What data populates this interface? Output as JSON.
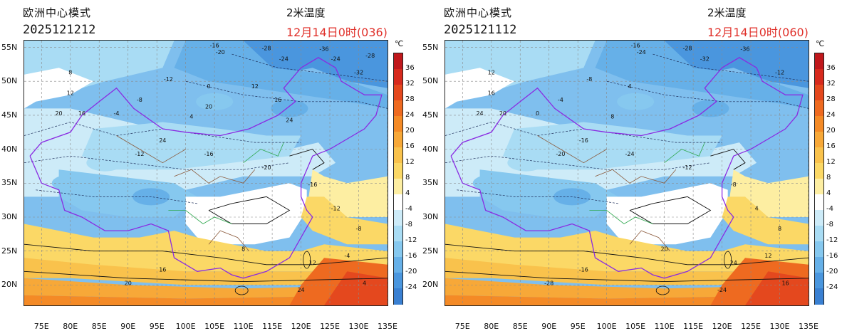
{
  "left_panel": {
    "model": "欧洲中心模式",
    "run_time": "2025121212",
    "variable": "2米温度",
    "valid_time": "12月14日0时(036)"
  },
  "right_panel": {
    "model": "欧洲中心模式",
    "run_time": "2025121112",
    "variable": "2米温度",
    "valid_time": "12月14日0时(060)"
  },
  "axes": {
    "lon_labels": [
      "75E",
      "80E",
      "85E",
      "90E",
      "95E",
      "100E",
      "105E",
      "110E",
      "115E",
      "120E",
      "125E",
      "130E",
      "135E"
    ],
    "lat_labels": [
      "55N",
      "50N",
      "45N",
      "40N",
      "35N",
      "30N",
      "25N",
      "20N"
    ]
  },
  "colorbar": {
    "unit": "℃",
    "labels": [
      "36",
      "32",
      "28",
      "24",
      "20",
      "16",
      "12",
      "8",
      "4",
      "-4",
      "-8",
      "-12",
      "-16",
      "-20",
      "-24"
    ],
    "colors": [
      "#c0181c",
      "#d72a1e",
      "#e4481e",
      "#ee6a20",
      "#f48a26",
      "#f7a838",
      "#f9c24c",
      "#fbd866",
      "#fdeea2",
      "#ffffff",
      "#cdebf8",
      "#a9dcf4",
      "#86c8ef",
      "#66b0e8",
      "#4a96de",
      "#3a80d2"
    ]
  },
  "map_labels_left": [
    "-16",
    "-20",
    "-28",
    "-36",
    "-24",
    "-32",
    "-12",
    "-8",
    "-4",
    "0",
    "4",
    "8",
    "12",
    "16",
    "20",
    "24",
    "-12",
    "-16",
    "-20",
    "-16",
    "-12",
    "-8",
    "-4",
    "4",
    "8",
    "12",
    "16",
    "20",
    "24",
    "12",
    "16",
    "20",
    "24",
    "-24",
    "-28"
  ],
  "map_labels_right": [
    "-16",
    "-24",
    "-28",
    "-36",
    "-32",
    "-12",
    "-8",
    "-4",
    "0",
    "4",
    "8",
    "12",
    "16",
    "20",
    "24",
    "-16",
    "-20",
    "-24",
    "-12",
    "-8",
    "4",
    "8",
    "12",
    "16",
    "20",
    "24",
    "-16",
    "-28",
    "-24"
  ],
  "chart_data": {
    "type": "heatmap",
    "title": "2米温度",
    "units": "℃",
    "lon_range": [
      72,
      135
    ],
    "lat_range": [
      17,
      56
    ],
    "levels": [
      -24,
      -20,
      -16,
      -12,
      -8,
      -4,
      4,
      8,
      12,
      16,
      20,
      24,
      28,
      32,
      36
    ]
  }
}
